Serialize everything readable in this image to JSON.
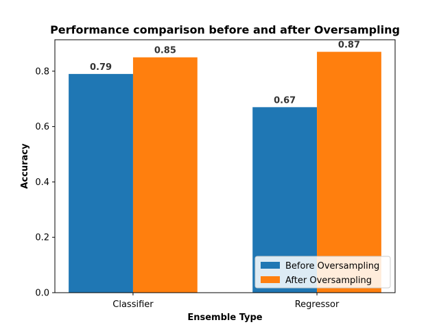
{
  "chart_data": {
    "type": "bar",
    "title": "Performance comparison before and after Oversampling",
    "xlabel": "Ensemble Type",
    "ylabel": "Accuracy",
    "categories": [
      "Classifier",
      "Regressor"
    ],
    "series": [
      {
        "name": "Before Oversampling",
        "values": [
          0.79,
          0.67
        ],
        "labels": [
          "0.79",
          "0.67"
        ],
        "color": "#1f77b4"
      },
      {
        "name": "After Oversampling",
        "values": [
          0.85,
          0.87
        ],
        "labels": [
          "0.85",
          "0.87"
        ],
        "color": "#ff7f0e"
      }
    ],
    "ylim": [
      0,
      0.9135
    ],
    "yticks": [
      0.0,
      0.2,
      0.4,
      0.6,
      0.8
    ],
    "ytick_labels": [
      "0.0",
      "0.2",
      "0.4",
      "0.6",
      "0.8"
    ],
    "grid": false,
    "legend_position": "lower-right"
  }
}
